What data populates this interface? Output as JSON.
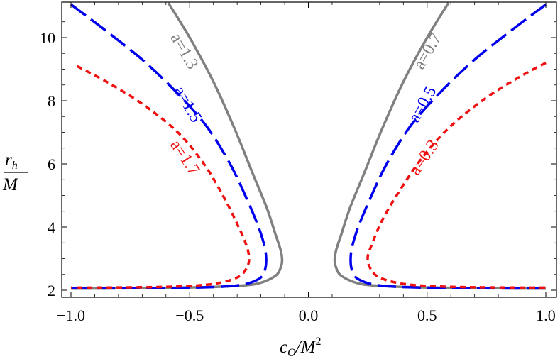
{
  "chart_data": {
    "type": "line",
    "xlabel": "c_O/M^2",
    "ylabel": "r_h/M",
    "xlabel_main": "c",
    "xlabel_sub": "O",
    "xlabel_tail": "/M",
    "xlabel_sup": "2",
    "ylabel_numer_main": "r",
    "ylabel_numer_sub": "h",
    "ylabel_denom": "M",
    "xlim": [
      -1.0,
      1.0
    ],
    "ylim": [
      1.8,
      11.1
    ],
    "xticks": [
      -1.0,
      -0.5,
      0.0,
      0.5,
      1.0
    ],
    "xtick_labels": [
      "−1.0",
      "−0.5",
      "0.0",
      "0.5",
      "1.0"
    ],
    "yticks": [
      2,
      4,
      6,
      8,
      10
    ],
    "ytick_labels": [
      "2",
      "4",
      "6",
      "8",
      "10"
    ],
    "grid": false,
    "legend": "none",
    "series": [
      {
        "name": "a=1.3",
        "color": "#808080",
        "style": "solid",
        "points": [
          [
            -0.59,
            11.1
          ],
          [
            -0.5,
            10.0
          ],
          [
            -0.4,
            8.6
          ],
          [
            -0.31,
            7.1
          ],
          [
            -0.24,
            5.8
          ],
          [
            -0.175,
            4.6
          ],
          [
            -0.14,
            3.8
          ],
          [
            -0.118,
            3.3
          ],
          [
            -0.111,
            3.0
          ],
          [
            -0.115,
            2.75
          ],
          [
            -0.14,
            2.45
          ],
          [
            -0.22,
            2.2
          ],
          [
            -0.35,
            2.12
          ],
          [
            -0.55,
            2.08
          ],
          [
            -0.8,
            2.06
          ],
          [
            -1.0,
            2.05
          ]
        ]
      },
      {
        "name": "a=0.7",
        "color": "#808080",
        "style": "solid",
        "points": [
          [
            0.59,
            11.1
          ],
          [
            0.5,
            10.0
          ],
          [
            0.4,
            8.6
          ],
          [
            0.31,
            7.1
          ],
          [
            0.24,
            5.8
          ],
          [
            0.175,
            4.6
          ],
          [
            0.14,
            3.8
          ],
          [
            0.118,
            3.3
          ],
          [
            0.111,
            3.0
          ],
          [
            0.115,
            2.75
          ],
          [
            0.14,
            2.45
          ],
          [
            0.22,
            2.2
          ],
          [
            0.35,
            2.12
          ],
          [
            0.55,
            2.08
          ],
          [
            0.8,
            2.06
          ],
          [
            1.0,
            2.05
          ]
        ]
      },
      {
        "name": "a=1.5",
        "color": "#0000ee",
        "style": "dashed",
        "points": [
          [
            -1.0,
            11.05
          ],
          [
            -0.85,
            10.2
          ],
          [
            -0.7,
            9.3
          ],
          [
            -0.56,
            8.3
          ],
          [
            -0.43,
            7.2
          ],
          [
            -0.33,
            6.0
          ],
          [
            -0.26,
            4.9
          ],
          [
            -0.21,
            4.0
          ],
          [
            -0.185,
            3.4
          ],
          [
            -0.178,
            3.0
          ],
          [
            -0.183,
            2.65
          ],
          [
            -0.21,
            2.35
          ],
          [
            -0.3,
            2.15
          ],
          [
            -0.5,
            2.08
          ],
          [
            -0.75,
            2.06
          ],
          [
            -1.0,
            2.06
          ]
        ]
      },
      {
        "name": "a=0.5",
        "color": "#0000ee",
        "style": "dashed",
        "points": [
          [
            1.0,
            11.05
          ],
          [
            0.85,
            10.2
          ],
          [
            0.7,
            9.3
          ],
          [
            0.56,
            8.3
          ],
          [
            0.43,
            7.2
          ],
          [
            0.33,
            6.0
          ],
          [
            0.26,
            4.9
          ],
          [
            0.21,
            4.0
          ],
          [
            0.185,
            3.4
          ],
          [
            0.178,
            3.0
          ],
          [
            0.183,
            2.65
          ],
          [
            0.21,
            2.35
          ],
          [
            0.3,
            2.15
          ],
          [
            0.5,
            2.08
          ],
          [
            0.75,
            2.06
          ],
          [
            1.0,
            2.06
          ]
        ]
      },
      {
        "name": "a=1.7",
        "color": "#ee1111",
        "style": "dotted",
        "points": [
          [
            -0.975,
            9.1
          ],
          [
            -0.85,
            8.6
          ],
          [
            -0.7,
            7.9
          ],
          [
            -0.55,
            7.0
          ],
          [
            -0.44,
            6.0
          ],
          [
            -0.36,
            5.0
          ],
          [
            -0.3,
            4.1
          ],
          [
            -0.265,
            3.5
          ],
          [
            -0.25,
            3.05
          ],
          [
            -0.26,
            2.7
          ],
          [
            -0.3,
            2.4
          ],
          [
            -0.4,
            2.2
          ],
          [
            -0.55,
            2.12
          ],
          [
            -0.75,
            2.09
          ],
          [
            -1.0,
            2.08
          ]
        ]
      },
      {
        "name": "a=0.3",
        "color": "#ee1111",
        "style": "dotted",
        "points": [
          [
            1.0,
            9.2
          ],
          [
            0.9,
            8.8
          ],
          [
            0.75,
            8.1
          ],
          [
            0.6,
            7.2
          ],
          [
            0.48,
            6.2
          ],
          [
            0.38,
            5.1
          ],
          [
            0.31,
            4.2
          ],
          [
            0.27,
            3.5
          ],
          [
            0.25,
            3.05
          ],
          [
            0.26,
            2.7
          ],
          [
            0.3,
            2.4
          ],
          [
            0.4,
            2.2
          ],
          [
            0.55,
            2.12
          ],
          [
            0.75,
            2.09
          ],
          [
            1.0,
            2.08
          ]
        ]
      }
    ],
    "annotations": [
      {
        "text": "a=1.3",
        "color": "#808080"
      },
      {
        "text": "a=1.5",
        "color": "#0000ee"
      },
      {
        "text": "a=1.7",
        "color": "#ee1111"
      },
      {
        "text": "a=0.7",
        "color": "#808080"
      },
      {
        "text": "a=0.5",
        "color": "#0000ee"
      },
      {
        "text": "a=0.3",
        "color": "#ee1111"
      }
    ]
  }
}
